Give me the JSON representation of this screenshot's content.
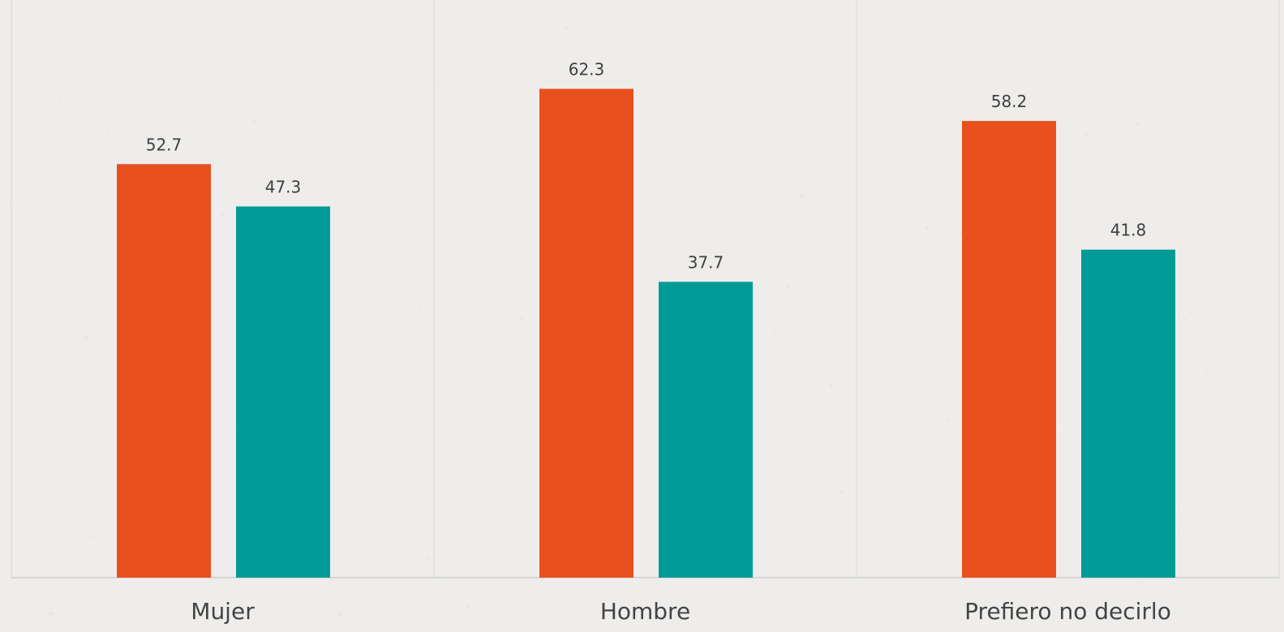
{
  "chart_data": {
    "type": "bar",
    "categories": [
      "Mujer",
      "Hombre",
      "Prefiero no decirlo"
    ],
    "series": [
      {
        "color": "#e8501e",
        "values": [
          52.7,
          62.3,
          58.2
        ]
      },
      {
        "color": "#009b96",
        "values": [
          47.3,
          37.7,
          41.8
        ]
      }
    ],
    "title": "",
    "xlabel": "",
    "ylabel": "",
    "ylim": [
      0,
      70
    ],
    "grid": false,
    "legend": "none"
  }
}
